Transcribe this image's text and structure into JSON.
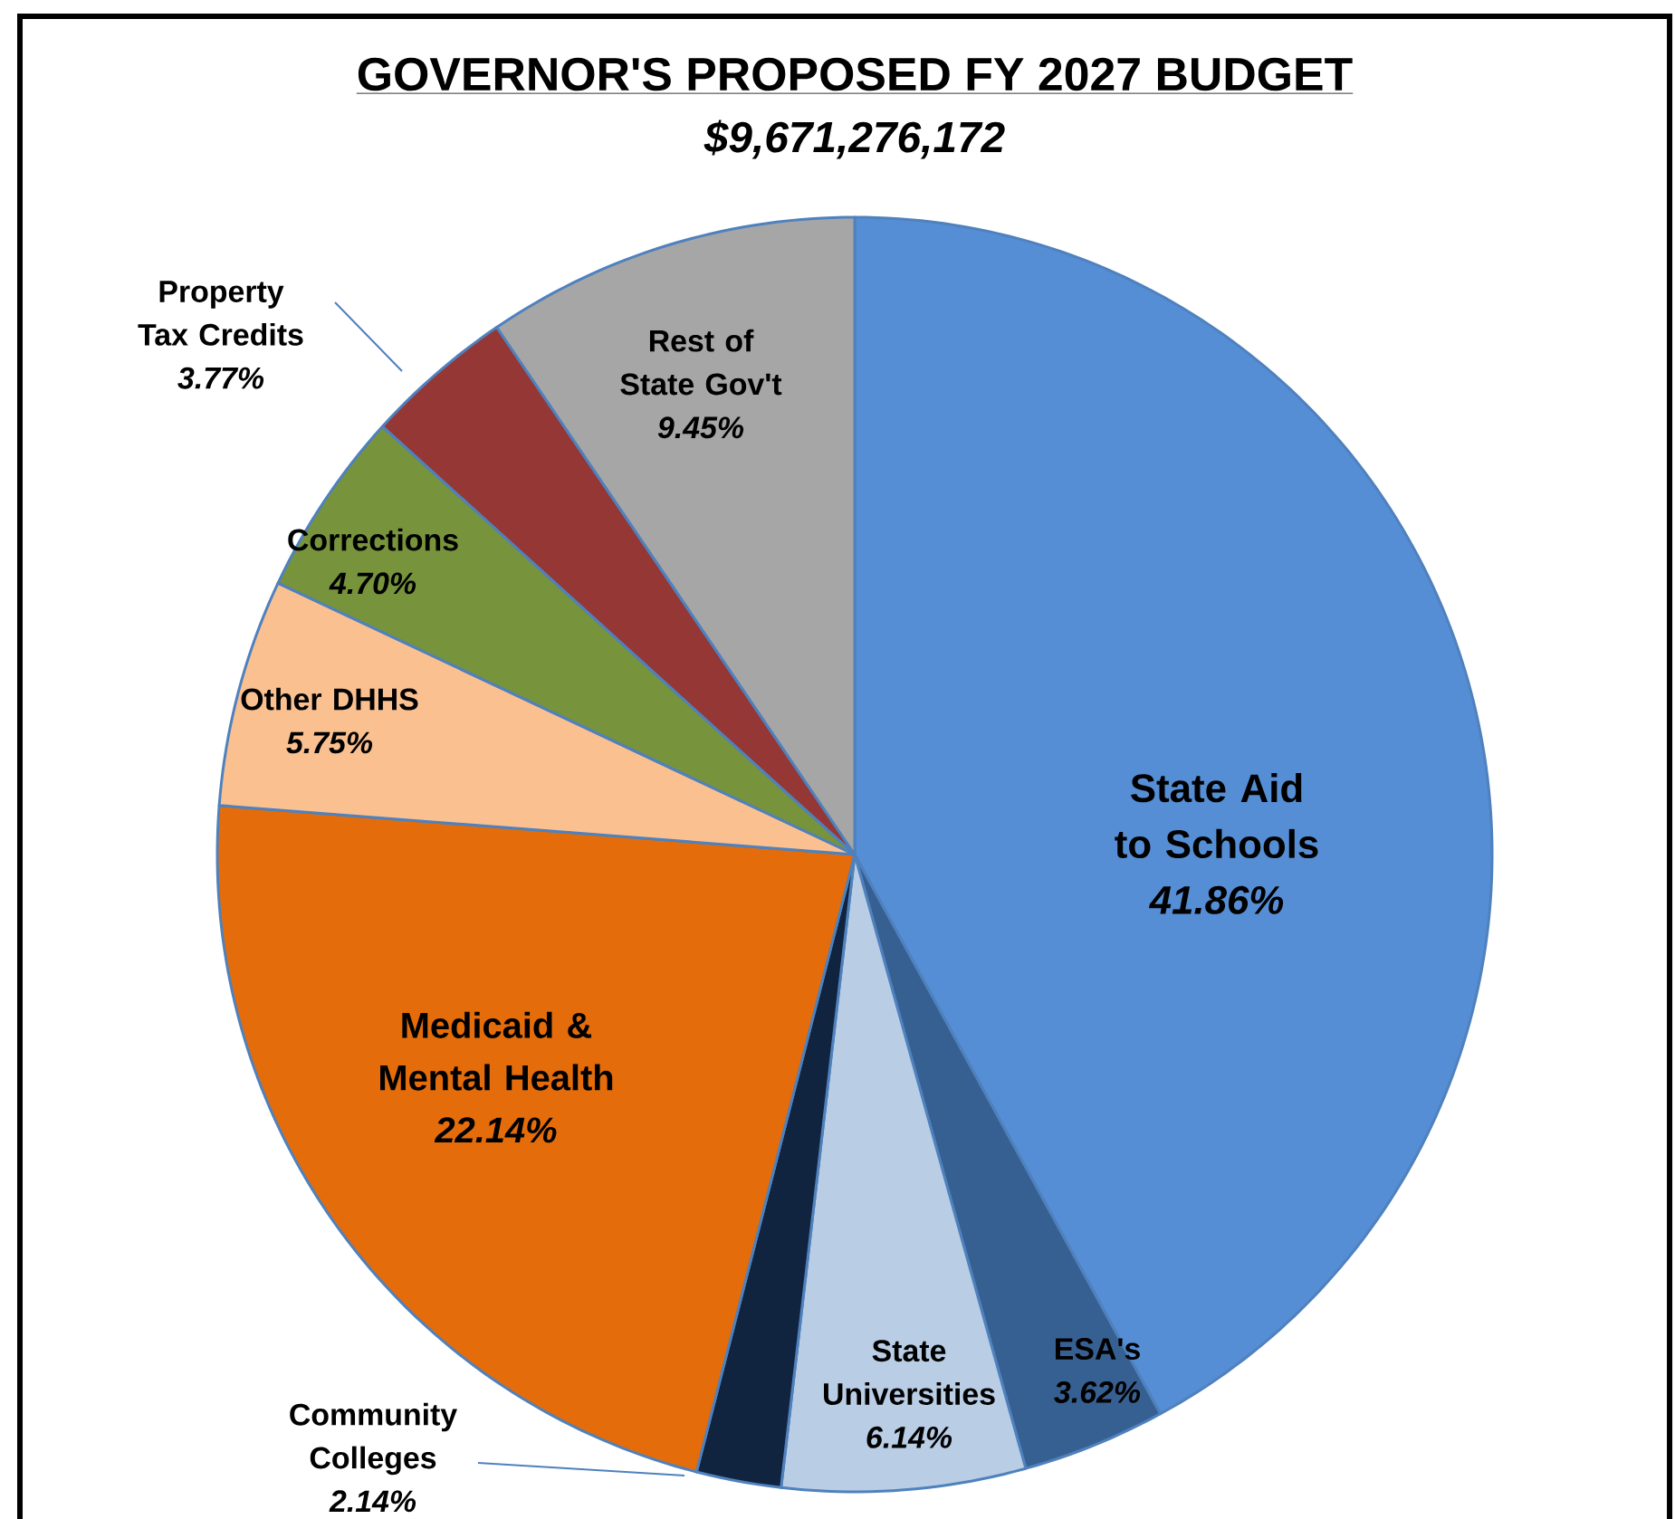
{
  "chart_data": {
    "type": "pie",
    "title": "GOVERNOR'S PROPOSED FY 2027 BUDGET",
    "subtitle": "$9,671,276,172",
    "categories": [
      "State Aid to Schools",
      "ESA's",
      "State Universities",
      "Community Colleges",
      "Medicaid & Mental Health",
      "Other DHHS",
      "Corrections",
      "Property Tax Credits",
      "Rest of State Gov't"
    ],
    "values": [
      41.86,
      3.62,
      6.14,
      2.14,
      22.14,
      5.75,
      4.7,
      3.77,
      9.45
    ],
    "value_labels": [
      "41.86%",
      "3.62%",
      "6.14%",
      "2.14%",
      "22.14%",
      "5.75%",
      "4.70%",
      "3.77%",
      "9.45%"
    ],
    "colors": [
      "#558ed5",
      "#376092",
      "#b9cde5",
      "#10243f",
      "#e46c0a",
      "#fac090",
      "#77933c",
      "#953735",
      "#a6a6a6"
    ]
  }
}
